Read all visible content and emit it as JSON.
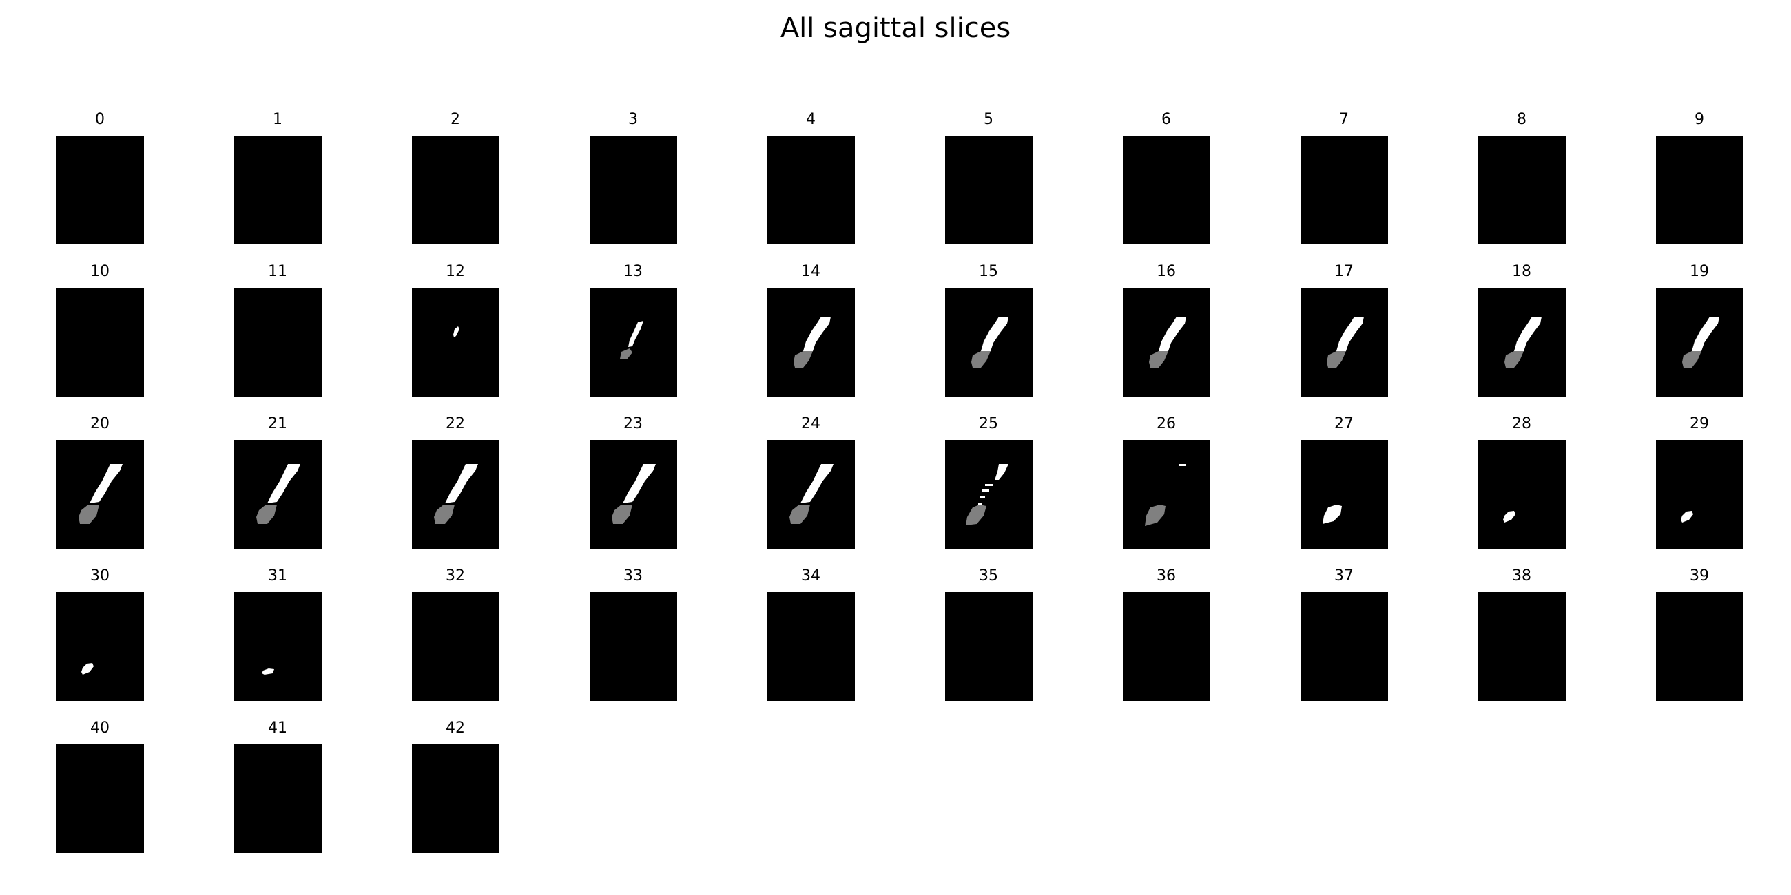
{
  "title": "All sagittal slices",
  "slices": [
    {
      "label": "0",
      "shape": "none"
    },
    {
      "label": "1",
      "shape": "none"
    },
    {
      "label": "2",
      "shape": "none"
    },
    {
      "label": "3",
      "shape": "none"
    },
    {
      "label": "4",
      "shape": "none"
    },
    {
      "label": "5",
      "shape": "none"
    },
    {
      "label": "6",
      "shape": "none"
    },
    {
      "label": "7",
      "shape": "none"
    },
    {
      "label": "8",
      "shape": "none"
    },
    {
      "label": "9",
      "shape": "none"
    },
    {
      "label": "10",
      "shape": "none"
    },
    {
      "label": "11",
      "shape": "none"
    },
    {
      "label": "12",
      "shape": "speck"
    },
    {
      "label": "13",
      "shape": "stripe-small"
    },
    {
      "label": "14",
      "shape": "stripe"
    },
    {
      "label": "15",
      "shape": "stripe"
    },
    {
      "label": "16",
      "shape": "stripe"
    },
    {
      "label": "17",
      "shape": "stripe"
    },
    {
      "label": "18",
      "shape": "stripe"
    },
    {
      "label": "19",
      "shape": "stripe"
    },
    {
      "label": "20",
      "shape": "stripe-thin"
    },
    {
      "label": "21",
      "shape": "stripe-thin"
    },
    {
      "label": "22",
      "shape": "stripe-thin"
    },
    {
      "label": "23",
      "shape": "stripe-thin"
    },
    {
      "label": "24",
      "shape": "stripe-thin"
    },
    {
      "label": "25",
      "shape": "stripe-broken"
    },
    {
      "label": "26",
      "shape": "grey-blob"
    },
    {
      "label": "27",
      "shape": "white-blob"
    },
    {
      "label": "28",
      "shape": "white-blob-small"
    },
    {
      "label": "29",
      "shape": "white-blob-small"
    },
    {
      "label": "30",
      "shape": "white-blob-small"
    },
    {
      "label": "31",
      "shape": "white-dot"
    },
    {
      "label": "32",
      "shape": "none"
    },
    {
      "label": "33",
      "shape": "none"
    },
    {
      "label": "34",
      "shape": "none"
    },
    {
      "label": "35",
      "shape": "none"
    },
    {
      "label": "36",
      "shape": "none"
    },
    {
      "label": "37",
      "shape": "none"
    },
    {
      "label": "38",
      "shape": "none"
    },
    {
      "label": "39",
      "shape": "none"
    },
    {
      "label": "40",
      "shape": "none"
    },
    {
      "label": "41",
      "shape": "none"
    },
    {
      "label": "42",
      "shape": "none"
    }
  ],
  "colors": {
    "background": "#000000",
    "mask_white": "#ffffff",
    "mask_grey": "#808080"
  }
}
